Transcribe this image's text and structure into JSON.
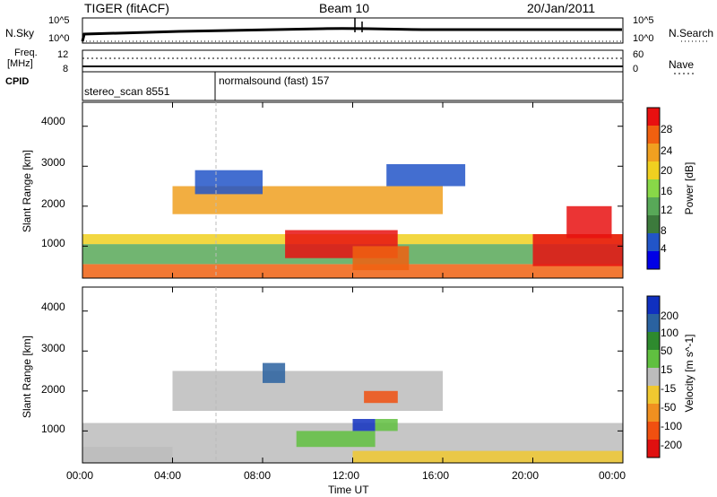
{
  "header": {
    "title_left": "TIGER (fitACF)",
    "title_center": "Beam 10",
    "title_right": "20/Jan/2011"
  },
  "nsky_panel": {
    "label": "N.Sky",
    "tick_top_left": "10^5",
    "tick_bottom_left": "10^0",
    "tick_top_right": "10^5",
    "tick_bottom_right": "10^0",
    "right_label": "N.Search"
  },
  "freq_panel": {
    "label_line1": "Freq.",
    "label_line2": "[MHz]",
    "tick_left_top": "12",
    "tick_left_bottom": "8",
    "tick_right_top": "60",
    "tick_right_bottom": "0",
    "right_label": "Nave"
  },
  "cpid_panel": {
    "label": "CPID",
    "mode1": "stereo_scan 8551",
    "mode2": "normalsound (fast) 157"
  },
  "power_panel": {
    "ylabel": "Slant Range [km]",
    "yticks": [
      "4000",
      "3000",
      "2000",
      "1000"
    ],
    "colorbar_label": "Power [dB]",
    "colorbar_ticks": [
      "28",
      "24",
      "20",
      "16",
      "12",
      "8",
      "4"
    ],
    "colors": [
      "#0000e6",
      "#2255c8",
      "#3c7a3c",
      "#58a858",
      "#88d848",
      "#f0d020",
      "#f0a020",
      "#f06010",
      "#e81010"
    ]
  },
  "velocity_panel": {
    "ylabel": "Slant Range [km]",
    "yticks": [
      "4000",
      "3000",
      "2000",
      "1000"
    ],
    "colorbar_label": "Velocity [m s^-1]",
    "colorbar_ticks": [
      "200",
      "100",
      "50",
      "15",
      "-15",
      "-50",
      "-100",
      "-200"
    ],
    "colors": [
      "#1030c0",
      "#2a62a0",
      "#2e8a2e",
      "#60c040",
      "#bcbcbc",
      "#f0c830",
      "#f09020",
      "#f05010",
      "#e01010"
    ]
  },
  "xaxis": {
    "ticks": [
      "00:00",
      "04:00",
      "08:00",
      "12:00",
      "16:00",
      "20:00",
      "00:00"
    ],
    "label": "Time UT"
  },
  "chart_data": [
    {
      "type": "heatmap",
      "title": "Power",
      "xlabel": "Time UT",
      "ylabel": "Slant Range [km]",
      "xlim": [
        0,
        24
      ],
      "ylim": [
        200,
        4600
      ],
      "colorbar": "Power [dB]",
      "clim": [
        0,
        30
      ],
      "regions": [
        {
          "t": [
            0,
            24
          ],
          "r": [
            200,
            550
          ],
          "v": 25
        },
        {
          "t": [
            0,
            24
          ],
          "r": [
            550,
            1050
          ],
          "v": 10
        },
        {
          "t": [
            0,
            24
          ],
          "r": [
            1050,
            1300
          ],
          "v": 18
        },
        {
          "t": [
            4,
            16
          ],
          "r": [
            1800,
            2500
          ],
          "v": 21
        },
        {
          "t": [
            9,
            14
          ],
          "r": [
            700,
            1400
          ],
          "v": 27
        },
        {
          "t": [
            12,
            14.5
          ],
          "r": [
            400,
            1000
          ],
          "v": 26
        },
        {
          "t": [
            20,
            24
          ],
          "r": [
            500,
            1300
          ],
          "v": 27
        },
        {
          "t": [
            21.5,
            23.5
          ],
          "r": [
            1200,
            2000
          ],
          "v": 28
        },
        {
          "t": [
            13.5,
            17
          ],
          "r": [
            2500,
            3050
          ],
          "v": 6
        },
        {
          "t": [
            5,
            8
          ],
          "r": [
            2300,
            2900
          ],
          "v": 6
        }
      ]
    },
    {
      "type": "heatmap",
      "title": "Velocity",
      "xlabel": "Time UT",
      "ylabel": "Slant Range [km]",
      "xlim": [
        0,
        24
      ],
      "ylim": [
        200,
        4600
      ],
      "colorbar": "Velocity [m s^-1]",
      "clim": [
        -250,
        250
      ],
      "regions": [
        {
          "t": [
            0,
            24
          ],
          "r": [
            200,
            1200
          ],
          "v": 0
        },
        {
          "t": [
            4,
            16
          ],
          "r": [
            1500,
            2500
          ],
          "v": 0
        },
        {
          "t": [
            9.5,
            13
          ],
          "r": [
            600,
            1000
          ],
          "v": 60
        },
        {
          "t": [
            12,
            13
          ],
          "r": [
            1000,
            1300
          ],
          "v": 210
        },
        {
          "t": [
            13,
            14
          ],
          "r": [
            1000,
            1300
          ],
          "v": 80
        },
        {
          "t": [
            12.5,
            14
          ],
          "r": [
            1700,
            2000
          ],
          "v": -150
        },
        {
          "t": [
            12,
            24
          ],
          "r": [
            200,
            500
          ],
          "v": -40
        },
        {
          "t": [
            0,
            4
          ],
          "r": [
            200,
            600
          ],
          "v": 20
        },
        {
          "t": [
            8,
            9
          ],
          "r": [
            2200,
            2700
          ],
          "v": 150
        }
      ]
    }
  ]
}
